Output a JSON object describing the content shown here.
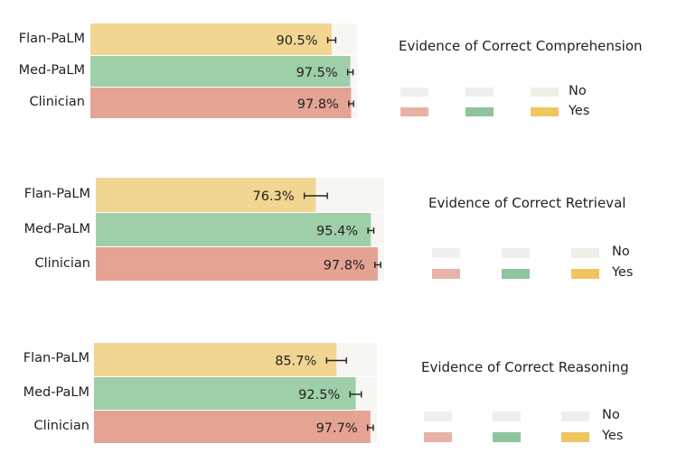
{
  "chart_data": [
    {
      "type": "bar",
      "orientation": "horizontal",
      "stacked": true,
      "title": "Evidence of Correct Comprehension",
      "categories": [
        "Flan-PaLM",
        "Med-PaLM",
        "Clinician"
      ],
      "series": [
        {
          "name": "Yes",
          "values": [
            90.5,
            97.5,
            97.8
          ],
          "labels": [
            "90.5%",
            "97.5%",
            "97.8%"
          ]
        },
        {
          "name": "No",
          "values": [
            9.5,
            2.5,
            2.2
          ]
        }
      ],
      "error": [
        1.5,
        1.0,
        0.9
      ],
      "xlim": [
        0,
        100
      ],
      "legend": [
        "No",
        "Yes"
      ]
    },
    {
      "type": "bar",
      "orientation": "horizontal",
      "stacked": true,
      "title": "Evidence of Correct Retrieval",
      "categories": [
        "Flan-PaLM",
        "Med-PaLM",
        "Clinician"
      ],
      "series": [
        {
          "name": "Yes",
          "values": [
            76.3,
            95.4,
            97.8
          ],
          "labels": [
            "76.3%",
            "95.4%",
            "97.8%"
          ]
        },
        {
          "name": "No",
          "values": [
            23.7,
            4.6,
            2.2
          ]
        }
      ],
      "error": [
        4.0,
        1.0,
        1.0
      ],
      "xlim": [
        0,
        100
      ],
      "legend": [
        "No",
        "Yes"
      ]
    },
    {
      "type": "bar",
      "orientation": "horizontal",
      "stacked": true,
      "title": "Evidence of Correct Reasoning",
      "categories": [
        "Flan-PaLM",
        "Med-PaLM",
        "Clinician"
      ],
      "series": [
        {
          "name": "Yes",
          "values": [
            85.7,
            92.5,
            97.7
          ],
          "labels": [
            "85.7%",
            "92.5%",
            "97.7%"
          ]
        },
        {
          "name": "No",
          "values": [
            14.3,
            7.5,
            2.3
          ]
        }
      ],
      "error": [
        3.5,
        2.0,
        1.0
      ],
      "xlim": [
        0,
        100
      ],
      "legend": [
        "No",
        "Yes"
      ]
    }
  ],
  "colors": {
    "flan_yes": "#f3d592",
    "med_yes": "#9ecfa8",
    "clin_yes": "#e5a394",
    "no_bg": "#f7f6f3",
    "leg_no_1": "#f1efef",
    "leg_no_2": "#ebf1ea",
    "leg_no_3": "#efeee9",
    "leg_yes_1": "#e8b3a6",
    "leg_yes_2": "#8fc59c",
    "leg_yes_3": "#f0c55f"
  }
}
